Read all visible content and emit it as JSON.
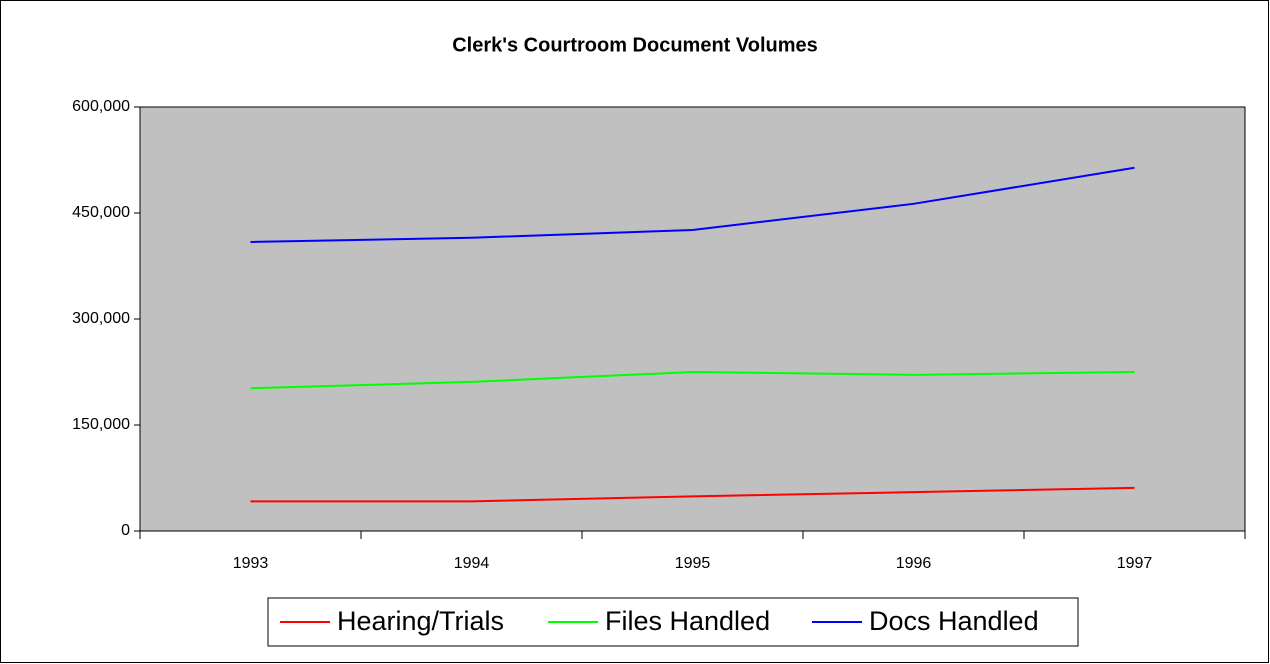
{
  "chart_data": {
    "type": "line",
    "title": "Clerk's Courtroom Document Volumes",
    "categories": [
      "1993",
      "1994",
      "1995",
      "1996",
      "1997"
    ],
    "series": [
      {
        "name": "Hearing/Trials",
        "color": "#ff0000",
        "values": [
          42000,
          42000,
          49000,
          55000,
          61000
        ]
      },
      {
        "name": "Files Handled",
        "color": "#00ff00",
        "values": [
          202000,
          211000,
          225000,
          221000,
          225000
        ]
      },
      {
        "name": "Docs Handled",
        "color": "#0000ff",
        "values": [
          409000,
          415000,
          426000,
          463000,
          514000
        ]
      }
    ],
    "ylim": [
      0,
      600000
    ],
    "yticks": [
      0,
      {
        "value": 150000,
        "label": "150,000"
      },
      {
        "value": 300000,
        "label": "300,000"
      },
      {
        "value": 450000,
        "label": "450,000"
      },
      {
        "value": 600000,
        "label": "600,000"
      }
    ],
    "plot_background": "#c0c0c0",
    "legend": "bottom"
  }
}
